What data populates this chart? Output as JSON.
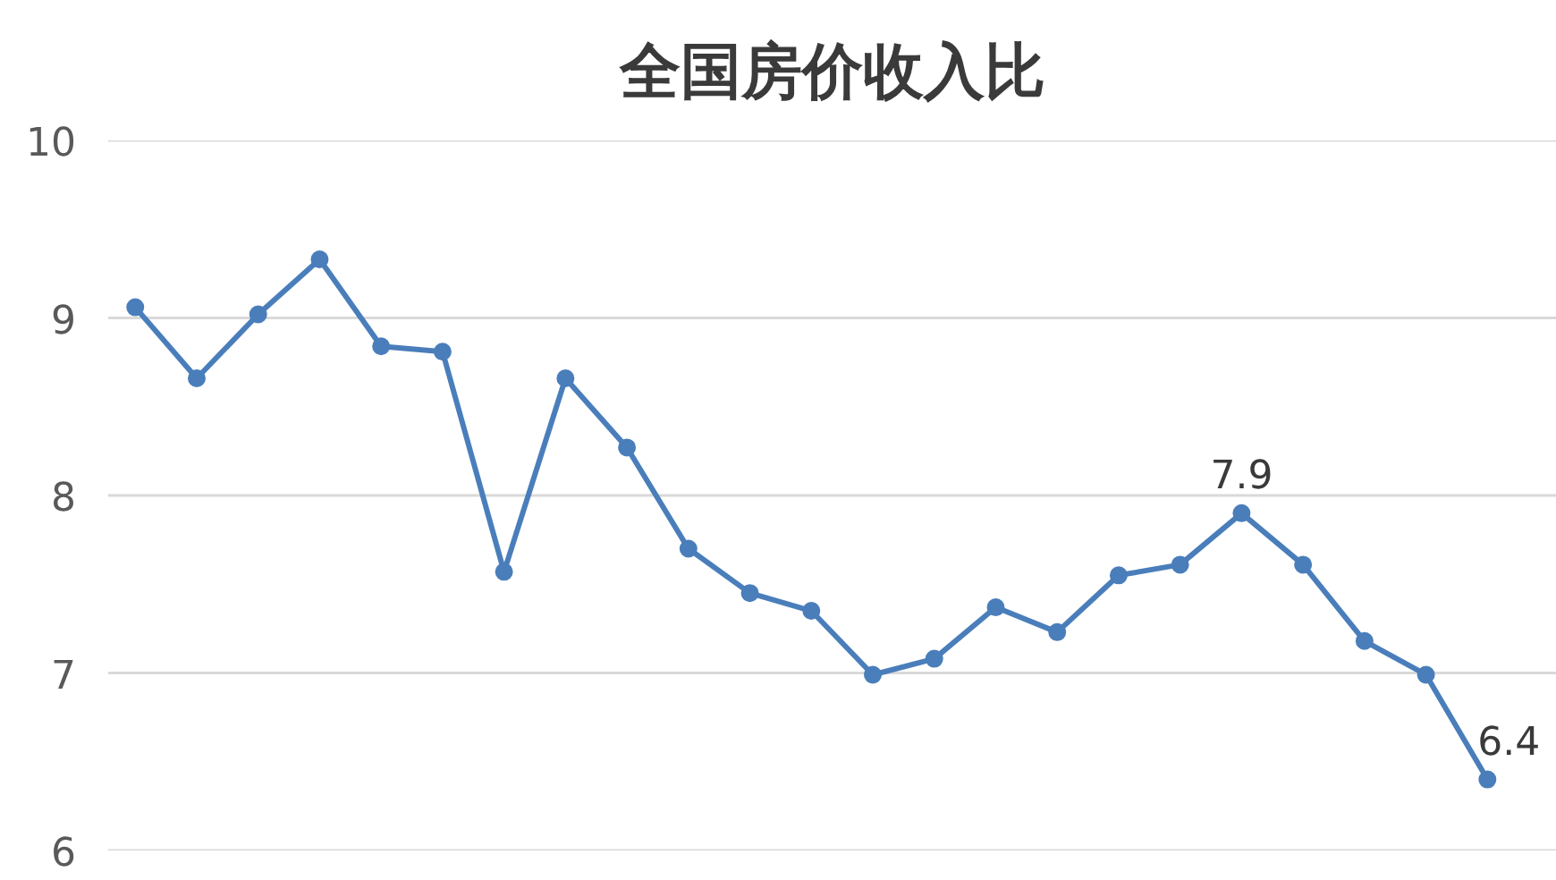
{
  "chart_data": {
    "type": "line",
    "title": "全国房价收入比",
    "categories": [
      null,
      null,
      null,
      null,
      null,
      null,
      null,
      null,
      null,
      null,
      null,
      null,
      null,
      null,
      null,
      null,
      null,
      null,
      null,
      null,
      null,
      null,
      null
    ],
    "series": [
      {
        "color": "#4a7ebb",
        "values": [
          9.06,
          8.66,
          9.02,
          9.33,
          8.84,
          8.81,
          7.57,
          8.66,
          8.27,
          7.7,
          7.45,
          7.35,
          6.99,
          7.08,
          7.37,
          7.23,
          7.55,
          7.61,
          7.9,
          7.61,
          7.18,
          6.99,
          6.4
        ],
        "value_labels": [
          null,
          null,
          null,
          null,
          null,
          null,
          null,
          null,
          null,
          null,
          null,
          null,
          null,
          null,
          null,
          null,
          null,
          null,
          "7.9",
          null,
          null,
          null,
          "6.4"
        ]
      }
    ],
    "ylim": [
      6,
      10
    ],
    "yticks": [
      6,
      7,
      8,
      9,
      10
    ],
    "grid": "y",
    "tick_labels": "y",
    "marker": "circle",
    "line_style": "solid"
  }
}
